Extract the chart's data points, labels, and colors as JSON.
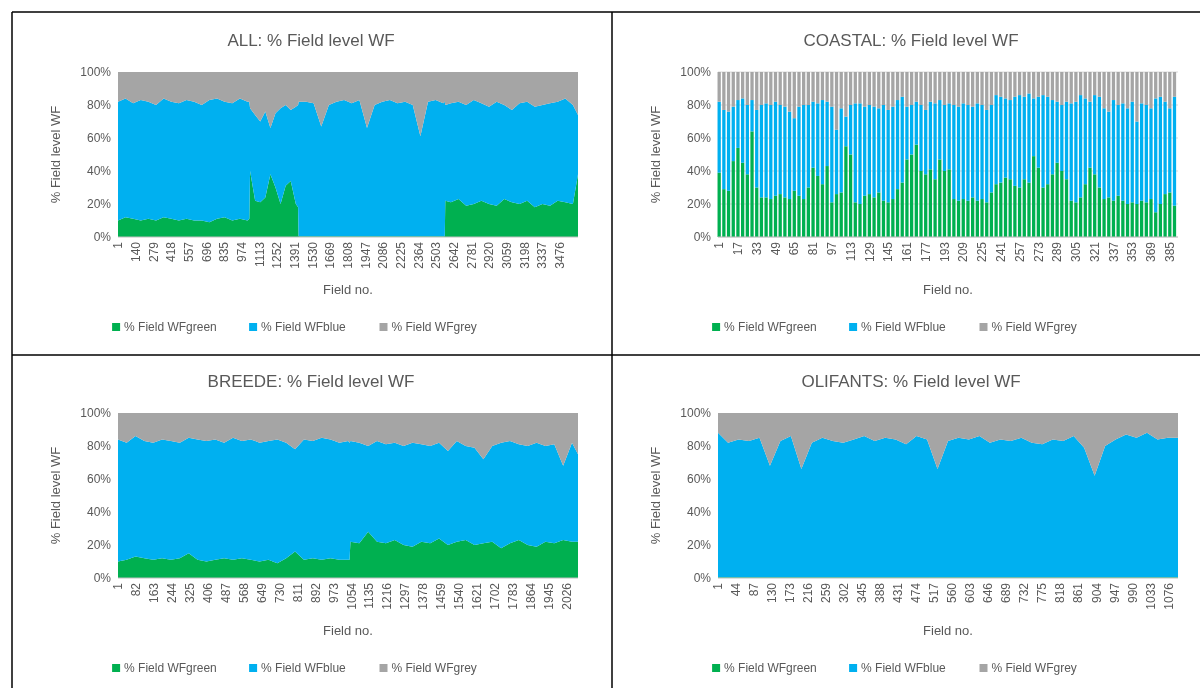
{
  "chart_data": [
    {
      "type": "area",
      "title": "ALL: % Field level WF",
      "xlabel": "Field no.",
      "ylabel": "% Field level WF",
      "stacked": true,
      "legend": "bottom",
      "xlim": [
        1,
        3620
      ],
      "xticks": [
        1,
        140,
        279,
        418,
        557,
        696,
        835,
        974,
        1113,
        1252,
        1391,
        1530,
        1669,
        1808,
        1947,
        2086,
        2225,
        2364,
        2503,
        2642,
        2781,
        2920,
        3059,
        3198,
        3337,
        3476
      ],
      "ylim": [
        0,
        100
      ],
      "yticks": [
        {
          "value": 0,
          "label": "0%"
        },
        {
          "value": 20,
          "label": "20%"
        },
        {
          "value": 40,
          "label": "40%"
        },
        {
          "value": 60,
          "label": "60%"
        },
        {
          "value": 80,
          "label": "80%"
        },
        {
          "value": 100,
          "label": "100%"
        }
      ],
      "x": [
        1,
        60,
        120,
        180,
        240,
        300,
        360,
        420,
        480,
        540,
        600,
        660,
        720,
        780,
        840,
        900,
        960,
        1020,
        1034,
        1040,
        1080,
        1120,
        1160,
        1200,
        1240,
        1280,
        1320,
        1360,
        1400,
        1418,
        1422,
        1480,
        1540,
        1600,
        1660,
        1720,
        1780,
        1840,
        1900,
        1960,
        2020,
        2080,
        2140,
        2200,
        2260,
        2320,
        2380,
        2440,
        2500,
        2560,
        2572,
        2576,
        2620,
        2680,
        2740,
        2800,
        2860,
        2920,
        2980,
        3040,
        3100,
        3160,
        3220,
        3280,
        3340,
        3400,
        3460,
        3520,
        3580,
        3620
      ],
      "series": [
        {
          "name": "% Field WFgreen",
          "color": "#00b050",
          "values": [
            10,
            12,
            11,
            10,
            11,
            10,
            12,
            11,
            10,
            11,
            10,
            10,
            9,
            11,
            12,
            10,
            11,
            10,
            11,
            40,
            22,
            21,
            24,
            38,
            30,
            20,
            31,
            34,
            20,
            18,
            0.5,
            0.5,
            0.5,
            0.5,
            0.5,
            0.5,
            0.5,
            0.5,
            0.5,
            0.5,
            0.5,
            0.5,
            0.5,
            0.5,
            0.5,
            0.5,
            0.5,
            0.5,
            0.5,
            0.5,
            0.5,
            22,
            21,
            23,
            19,
            20,
            22,
            20,
            19,
            23,
            21,
            20,
            22,
            18,
            20,
            19,
            22,
            21,
            20,
            38
          ]
        },
        {
          "name": "% Field WFblue",
          "color": "#00b0f0",
          "values": [
            72,
            72,
            70,
            73,
            71,
            70,
            72,
            71,
            71,
            72,
            72,
            70,
            74,
            73,
            70,
            71,
            73,
            72,
            71,
            38,
            52,
            49,
            52,
            28,
            45,
            58,
            49,
            43,
            59,
            62,
            81.5,
            81.5,
            80.5,
            66.5,
            79.5,
            81.5,
            82.5,
            80.5,
            82.5,
            65.5,
            79.5,
            81.5,
            82.5,
            80.5,
            81.5,
            79.5,
            60.5,
            81.5,
            82.5,
            80.5,
            81.5,
            58,
            60,
            59,
            61,
            63,
            59,
            59,
            63,
            57,
            56,
            61,
            60,
            61,
            60,
            62,
            60,
            63,
            60,
            36
          ]
        },
        {
          "name": "% Field WFgrey",
          "color": "#a5a5a5",
          "values": [
            18,
            16,
            19,
            17,
            18,
            20,
            16,
            18,
            19,
            17,
            18,
            20,
            17,
            16,
            18,
            19,
            16,
            18,
            18,
            22,
            26,
            30,
            24,
            34,
            25,
            22,
            20,
            23,
            21,
            20,
            18,
            18,
            19,
            33,
            20,
            18,
            17,
            19,
            17,
            34,
            20,
            18,
            17,
            19,
            18,
            20,
            39,
            18,
            17,
            19,
            18,
            20,
            19,
            18,
            20,
            17,
            19,
            21,
            18,
            20,
            23,
            19,
            18,
            21,
            20,
            19,
            18,
            16,
            20,
            26
          ]
        }
      ]
    },
    {
      "type": "bar",
      "title": "COASTAL: % Field level WF",
      "xlabel": "Field no.",
      "ylabel": "% Field level WF",
      "stacked": true,
      "grid": "y",
      "legend": "bottom",
      "xlim": [
        0,
        392
      ],
      "xticks": [
        1,
        17,
        33,
        49,
        65,
        81,
        97,
        113,
        129,
        145,
        161,
        177,
        193,
        209,
        225,
        241,
        257,
        273,
        289,
        305,
        321,
        337,
        353,
        369,
        385
      ],
      "ylim": [
        0,
        100
      ],
      "yticks": [
        {
          "value": 0,
          "label": "0%"
        },
        {
          "value": 20,
          "label": "20%"
        },
        {
          "value": 40,
          "label": "40%"
        },
        {
          "value": 60,
          "label": "60%"
        },
        {
          "value": 80,
          "label": "80%"
        },
        {
          "value": 100,
          "label": "100%"
        }
      ],
      "x": [
        1,
        5,
        9,
        13,
        17,
        21,
        25,
        29,
        33,
        37,
        41,
        45,
        49,
        53,
        57,
        61,
        65,
        69,
        73,
        77,
        81,
        85,
        89,
        93,
        97,
        101,
        105,
        109,
        113,
        117,
        121,
        125,
        129,
        133,
        137,
        141,
        145,
        149,
        153,
        157,
        161,
        165,
        169,
        173,
        177,
        181,
        185,
        189,
        193,
        197,
        201,
        205,
        209,
        213,
        217,
        221,
        225,
        229,
        233,
        237,
        241,
        245,
        249,
        253,
        257,
        261,
        265,
        269,
        273,
        277,
        281,
        285,
        289,
        293,
        297,
        301,
        305,
        309,
        313,
        317,
        321,
        325,
        329,
        333,
        337,
        341,
        345,
        349,
        353,
        357,
        361,
        365,
        369,
        373,
        377,
        381,
        385,
        389
      ],
      "series": [
        {
          "name": "% Field WFgreen",
          "color": "#00b050",
          "values": [
            39,
            29,
            28,
            46,
            54,
            45,
            38,
            64,
            30,
            24,
            24,
            23,
            25,
            26,
            24,
            23,
            28,
            25,
            23,
            30,
            42,
            37,
            32,
            43,
            21,
            26,
            27,
            55,
            50,
            21,
            20,
            25,
            26,
            24,
            27,
            22,
            21,
            23,
            29,
            33,
            47,
            50,
            56,
            40,
            38,
            41,
            35,
            47,
            40,
            41,
            23,
            22,
            23,
            22,
            24,
            22,
            23,
            21,
            27,
            32,
            33,
            36,
            35,
            31,
            30,
            35,
            33,
            49,
            42,
            30,
            32,
            38,
            45,
            40,
            35,
            22,
            21,
            24,
            32,
            42,
            38,
            30,
            23,
            24,
            22,
            25,
            22,
            20,
            21,
            20,
            22,
            21,
            23,
            15,
            20,
            26,
            27,
            19
          ]
        },
        {
          "name": "% Field WFblue",
          "color": "#00b0f0",
          "values": [
            43,
            48,
            48,
            33,
            29,
            39,
            42,
            19,
            47,
            56,
            57,
            57,
            57,
            54,
            55,
            53,
            44,
            54,
            57,
            50,
            40,
            44,
            51,
            39,
            58,
            39,
            51,
            18,
            30,
            60,
            61,
            54,
            54,
            55,
            51,
            58,
            56,
            56,
            54,
            52,
            32,
            30,
            26,
            40,
            39,
            41,
            46,
            36,
            40,
            40,
            57,
            57,
            58,
            58,
            55,
            59,
            57,
            56,
            53,
            54,
            52,
            48,
            48,
            54,
            56,
            50,
            54,
            35,
            43,
            56,
            53,
            45,
            37,
            40,
            47,
            59,
            61,
            62,
            52,
            40,
            48,
            55,
            55,
            52,
            61,
            55,
            59,
            58,
            61,
            50,
            59,
            59,
            55,
            69,
            65,
            56,
            51,
            66
          ]
        },
        {
          "name": "% Field WFgrey",
          "color": "#a5a5a5",
          "values": [
            18,
            23,
            24,
            21,
            17,
            16,
            20,
            17,
            23,
            20,
            19,
            20,
            18,
            20,
            21,
            24,
            28,
            21,
            20,
            20,
            18,
            19,
            17,
            18,
            21,
            35,
            22,
            27,
            20,
            19,
            19,
            21,
            20,
            21,
            22,
            20,
            23,
            21,
            17,
            15,
            21,
            20,
            18,
            20,
            23,
            18,
            19,
            17,
            20,
            19,
            20,
            21,
            19,
            20,
            21,
            19,
            20,
            23,
            20,
            14,
            15,
            16,
            17,
            15,
            14,
            15,
            13,
            16,
            15,
            14,
            15,
            17,
            18,
            20,
            18,
            19,
            18,
            14,
            16,
            18,
            14,
            15,
            22,
            24,
            17,
            20,
            19,
            22,
            18,
            30,
            19,
            20,
            22,
            16,
            15,
            18,
            22,
            15
          ]
        }
      ]
    },
    {
      "type": "area",
      "title": "BREEDE: % Field level WF",
      "xlabel": "Field no.",
      "ylabel": "% Field level WF",
      "stacked": true,
      "legend": "bottom",
      "xlim": [
        1,
        2077
      ],
      "xticks": [
        1,
        82,
        163,
        244,
        325,
        406,
        487,
        568,
        649,
        730,
        811,
        892,
        973,
        1054,
        1135,
        1216,
        1297,
        1378,
        1459,
        1540,
        1621,
        1702,
        1783,
        1864,
        1945,
        2026
      ],
      "ylim": [
        0,
        100
      ],
      "yticks": [
        {
          "value": 0,
          "label": "0%"
        },
        {
          "value": 20,
          "label": "20%"
        },
        {
          "value": 40,
          "label": "40%"
        },
        {
          "value": 60,
          "label": "60%"
        },
        {
          "value": 80,
          "label": "80%"
        },
        {
          "value": 100,
          "label": "100%"
        }
      ],
      "x": [
        1,
        40,
        80,
        120,
        160,
        200,
        240,
        280,
        320,
        360,
        400,
        440,
        480,
        520,
        560,
        600,
        640,
        680,
        720,
        760,
        800,
        840,
        880,
        920,
        960,
        1000,
        1040,
        1046,
        1050,
        1090,
        1130,
        1170,
        1210,
        1250,
        1290,
        1330,
        1370,
        1410,
        1450,
        1490,
        1530,
        1570,
        1610,
        1650,
        1690,
        1730,
        1770,
        1810,
        1850,
        1890,
        1930,
        1970,
        2010,
        2050,
        2077
      ],
      "series": [
        {
          "name": "% Field WFgreen",
          "color": "#00b050",
          "values": [
            10,
            11,
            13,
            12,
            11,
            12,
            11,
            12,
            15,
            11,
            10,
            11,
            12,
            11,
            12,
            11,
            10,
            11,
            9,
            12,
            16,
            11,
            12,
            11,
            12,
            11,
            11,
            11,
            22,
            21,
            28,
            22,
            21,
            23,
            20,
            19,
            22,
            21,
            24,
            20,
            22,
            23,
            20,
            21,
            22,
            18,
            21,
            23,
            20,
            19,
            22,
            21,
            23,
            22,
            22
          ]
        },
        {
          "name": "% Field WFblue",
          "color": "#00b0f0",
          "values": [
            74,
            71,
            73,
            71,
            71,
            72,
            72,
            70,
            70,
            73,
            73,
            73,
            70,
            74,
            71,
            73,
            72,
            72,
            75,
            70,
            62,
            73,
            71,
            74,
            72,
            71,
            72,
            71,
            61,
            61,
            52,
            61,
            60,
            59,
            60,
            63,
            59,
            59,
            58,
            57,
            61,
            57,
            59,
            51,
            58,
            64,
            62,
            58,
            60,
            63,
            58,
            60,
            45,
            60,
            53
          ]
        },
        {
          "name": "% Field WFgrey",
          "color": "#a5a5a5",
          "values": [
            16,
            18,
            14,
            17,
            18,
            16,
            17,
            18,
            15,
            16,
            17,
            16,
            18,
            15,
            17,
            16,
            18,
            17,
            16,
            18,
            22,
            16,
            17,
            15,
            16,
            18,
            17,
            18,
            17,
            18,
            20,
            17,
            19,
            18,
            20,
            18,
            19,
            20,
            18,
            23,
            17,
            20,
            21,
            28,
            20,
            18,
            17,
            19,
            20,
            18,
            20,
            19,
            32,
            18,
            25
          ]
        }
      ]
    },
    {
      "type": "area",
      "title": "OLIFANTS: % Field level WF",
      "xlabel": "Field no.",
      "ylabel": "% Field level WF",
      "stacked": true,
      "legend": "bottom",
      "xlim": [
        1,
        1099
      ],
      "xticks": [
        1,
        44,
        87,
        130,
        173,
        216,
        259,
        302,
        345,
        388,
        431,
        474,
        517,
        560,
        603,
        646,
        689,
        732,
        775,
        818,
        861,
        904,
        947,
        990,
        1033,
        1076
      ],
      "ylim": [
        0,
        100
      ],
      "yticks": [
        {
          "value": 0,
          "label": "0%"
        },
        {
          "value": 20,
          "label": "20%"
        },
        {
          "value": 40,
          "label": "40%"
        },
        {
          "value": 60,
          "label": "60%"
        },
        {
          "value": 80,
          "label": "80%"
        },
        {
          "value": 100,
          "label": "100%"
        }
      ],
      "x": [
        1,
        25,
        50,
        75,
        100,
        125,
        150,
        175,
        200,
        225,
        250,
        275,
        300,
        325,
        350,
        375,
        400,
        425,
        450,
        475,
        500,
        525,
        550,
        575,
        600,
        625,
        650,
        675,
        700,
        725,
        750,
        775,
        800,
        825,
        850,
        875,
        900,
        925,
        950,
        975,
        1000,
        1025,
        1050,
        1075,
        1099
      ],
      "series": [
        {
          "name": "% Field WFgreen",
          "color": "#00b050",
          "values": [
            0.5,
            0.5,
            0.5,
            0.5,
            0.5,
            0.5,
            0.5,
            0.5,
            0.5,
            0.5,
            0.5,
            0.5,
            0.5,
            0.5,
            0.5,
            0.5,
            0.5,
            0.5,
            0.5,
            0.5,
            0.5,
            0.5,
            0.5,
            0.5,
            0.5,
            0.5,
            0.5,
            0.5,
            0.5,
            0.5,
            0.5,
            0.5,
            0.5,
            0.5,
            0.5,
            0.5,
            0.5,
            0.5,
            0.5,
            0.5,
            0.5,
            0.5,
            0.5,
            0.5,
            0.5
          ]
        },
        {
          "name": "% Field WFblue",
          "color": "#00b0f0",
          "values": [
            87.5,
            81.5,
            83.5,
            82.5,
            84.5,
            67.5,
            82.5,
            85.5,
            65.5,
            81.5,
            84.5,
            82.5,
            81.5,
            83.5,
            85.5,
            82.5,
            84.5,
            83.5,
            80.5,
            85.5,
            83.5,
            65.5,
            82.5,
            84.5,
            83.5,
            85.5,
            81.5,
            83.5,
            82.5,
            84.5,
            81.5,
            80.5,
            83.5,
            82.5,
            85.5,
            78.5,
            61.5,
            79.5,
            83.5,
            86.5,
            84.5,
            87.5,
            83.5,
            84.5,
            84.5
          ]
        },
        {
          "name": "% Field WFgrey",
          "color": "#a5a5a5",
          "values": [
            12,
            18,
            16,
            17,
            15,
            32,
            17,
            14,
            34,
            18,
            15,
            17,
            18,
            16,
            14,
            17,
            15,
            16,
            19,
            14,
            16,
            34,
            17,
            15,
            16,
            14,
            18,
            16,
            17,
            15,
            18,
            19,
            16,
            17,
            14,
            21,
            38,
            20,
            16,
            13,
            15,
            12,
            16,
            15,
            15
          ]
        }
      ]
    }
  ]
}
